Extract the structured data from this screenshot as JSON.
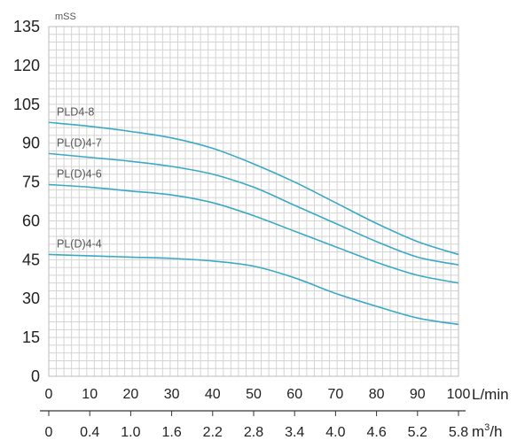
{
  "chart_data": {
    "type": "line",
    "ylabel": "mSS",
    "ylim": [
      0,
      135
    ],
    "yticks": [
      0,
      15,
      30,
      45,
      60,
      75,
      90,
      105,
      120,
      135
    ],
    "x_primary": {
      "label": "L/min",
      "lim": [
        0,
        100
      ],
      "ticks": [
        0,
        10,
        20,
        30,
        40,
        50,
        60,
        70,
        80,
        90,
        100
      ]
    },
    "x_secondary": {
      "label": "m³/h",
      "ticks": [
        "0",
        "0.4",
        "1.0",
        "1.6",
        "2.2",
        "2.8",
        "3.4",
        "4.0",
        "4.6",
        "5.2",
        "5.8"
      ]
    },
    "grid": true,
    "line_color": "#3aa9c6",
    "series": [
      {
        "name": "PLD4-8",
        "x": [
          0,
          10,
          20,
          30,
          40,
          50,
          60,
          70,
          80,
          90,
          100
        ],
        "y": [
          98,
          96.5,
          94.5,
          92,
          88,
          82,
          75,
          67,
          59,
          52,
          47
        ]
      },
      {
        "name": "PL(D)4-7",
        "x": [
          0,
          10,
          20,
          30,
          40,
          50,
          60,
          70,
          80,
          90,
          100
        ],
        "y": [
          86,
          84.5,
          83,
          81,
          78,
          73,
          66,
          59,
          52,
          46,
          43
        ]
      },
      {
        "name": "PL(D)4-6",
        "x": [
          0,
          10,
          20,
          30,
          40,
          50,
          60,
          70,
          80,
          90,
          100
        ],
        "y": [
          74,
          73,
          71.5,
          70,
          67,
          62,
          56,
          50,
          44,
          39,
          36
        ]
      },
      {
        "name": "PL(D)4-4",
        "x": [
          0,
          10,
          20,
          30,
          40,
          50,
          60,
          70,
          80,
          90,
          100
        ],
        "y": [
          47,
          46.5,
          46,
          45.5,
          44.5,
          42.5,
          38,
          32,
          27,
          22.5,
          20
        ]
      }
    ]
  }
}
